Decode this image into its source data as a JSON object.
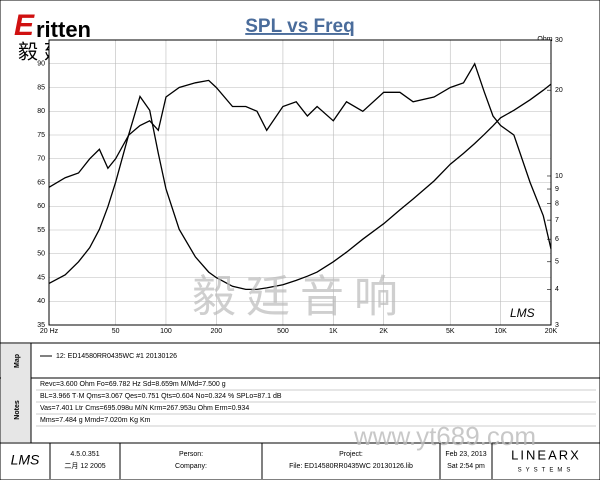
{
  "chart_data": {
    "type": "line",
    "title": "SPL vs Freq",
    "y2label": "Ohm",
    "x": [
      20,
      25,
      30,
      35,
      40,
      45,
      50,
      60,
      70,
      80,
      90,
      100,
      120,
      150,
      180,
      200,
      250,
      300,
      350,
      400,
      500,
      600,
      700,
      800,
      1000,
      1200,
      1500,
      2000,
      2500,
      3000,
      4000,
      5000,
      6000,
      7000,
      8000,
      9000,
      10000,
      12000,
      15000,
      18000,
      20000
    ],
    "series": [
      {
        "name": "12: ED14580RR0435WC #1 20130126",
        "color": "#000000",
        "values": [
          64,
          66,
          67,
          70,
          72,
          68,
          70,
          75,
          77,
          78,
          76,
          83,
          85,
          86,
          86.5,
          85,
          81,
          81,
          80,
          76,
          81,
          82,
          79,
          81,
          78,
          82,
          80,
          84,
          84,
          82,
          83,
          85,
          86,
          90,
          84,
          79,
          77,
          75,
          65,
          58,
          51
        ]
      },
      {
        "color": "#000000",
        "axis": "y2",
        "values": [
          4.2,
          4.5,
          5,
          5.6,
          6.5,
          7.8,
          9.5,
          14,
          19,
          17,
          12,
          9,
          6.5,
          5.2,
          4.6,
          4.4,
          4.1,
          4.0,
          4.0,
          4.05,
          4.15,
          4.3,
          4.45,
          4.6,
          5.0,
          5.4,
          6.0,
          6.8,
          7.6,
          8.3,
          9.6,
          11,
          12,
          13,
          14,
          15,
          16,
          17,
          18.5,
          20,
          21
        ]
      }
    ],
    "xlog": true,
    "xlim": [
      20,
      20000
    ],
    "xticks": [
      {
        "value": 20,
        "label": "20 Hz"
      },
      50,
      100,
      200,
      500,
      {
        "value": 1000,
        "label": "1K"
      },
      {
        "value": 2000,
        "label": "2K"
      },
      {
        "value": 5000,
        "label": "5K"
      },
      {
        "value": 10000,
        "label": "10K"
      },
      {
        "value": 20000,
        "label": "20K"
      }
    ],
    "ylim": [
      35,
      95
    ],
    "yticks": [
      35,
      40,
      45,
      50,
      55,
      60,
      65,
      70,
      75,
      80,
      85,
      90
    ],
    "y2log": true,
    "y2lim": [
      3,
      30
    ],
    "y2ticks": [
      3,
      4,
      5,
      6,
      7,
      8,
      9,
      10,
      20,
      30
    ],
    "grid": true
  },
  "header": {
    "logo": "ritten",
    "logo_initial": "E",
    "brand": "毅廷音响",
    "plot_logo": "LMS",
    "watermark": "毅廷音响",
    "watermark_url": "www.yt689.com"
  },
  "map": {
    "label": "Map"
  },
  "notes": {
    "label": "Notes",
    "lines": [
      "Revc=3.600 Ohm  Fo=69.782 Hz  Sd=8.659m  M/Md=7.500 g",
      "BL=3.966 T·M  Qms=3.067  Qes=0.751  Qts=0.604  No=0.324 %  SPLo=87.1 dB",
      "Vas=7.401 Ltr  Cms=695.098u M/N  Krm=267.953u Ohm  Erm=0.934",
      "Mms=7.484 g  Mmd=7.020m Kg  Km"
    ]
  },
  "footer": {
    "logo": "LMS",
    "version": "4.5.0.351",
    "build": "二月 12 2005",
    "person": "Person:",
    "company": "Company:",
    "project": "Project:",
    "file": "File: ED14580RR0435WC 20130126.lib",
    "date": "Feb 23, 2013",
    "time": "Sat  2:54 pm",
    "vendor": "LINEARX",
    "vendor_sub": "SYSTEMS"
  }
}
